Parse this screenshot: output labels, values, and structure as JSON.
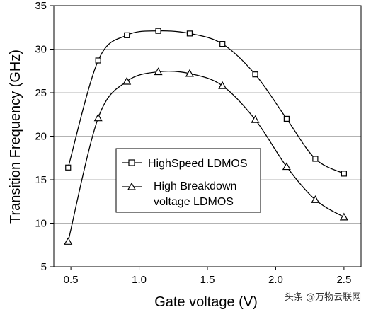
{
  "chart_data": {
    "type": "line",
    "title": "",
    "xlabel": "Gate voltage (V)",
    "ylabel": "Transition Frequency (GHz)",
    "xlim": [
      0.375,
      2.625
    ],
    "ylim": [
      5,
      35
    ],
    "xticks": [
      "0.5",
      "1.0",
      "1.5",
      "2.0",
      "2.5"
    ],
    "yticks": [
      "5",
      "10",
      "15",
      "20",
      "25",
      "30",
      "35"
    ],
    "grid": "horizontal",
    "legend_position": "center-left",
    "series": [
      {
        "name": "HighSpeed LDMOS",
        "marker": "square",
        "color": "#000000",
        "x": [
          0.48,
          0.7,
          0.91,
          1.14,
          1.37,
          1.61,
          1.85,
          2.08,
          2.29,
          2.5
        ],
        "y": [
          16.4,
          28.7,
          31.6,
          32.1,
          31.8,
          30.6,
          27.1,
          22.0,
          17.4,
          15.7
        ]
      },
      {
        "name": "High Breakdown voltage LDMOS",
        "name_lines": [
          "High Breakdown",
          "voltage LDMOS"
        ],
        "marker": "triangle",
        "color": "#000000",
        "x": [
          0.48,
          0.7,
          0.91,
          1.14,
          1.37,
          1.61,
          1.85,
          2.08,
          2.29,
          2.5
        ],
        "y": [
          7.9,
          22.1,
          26.3,
          27.4,
          27.2,
          25.8,
          21.9,
          16.5,
          12.7,
          10.7
        ]
      }
    ]
  },
  "watermark": "头条 @万物云联网"
}
